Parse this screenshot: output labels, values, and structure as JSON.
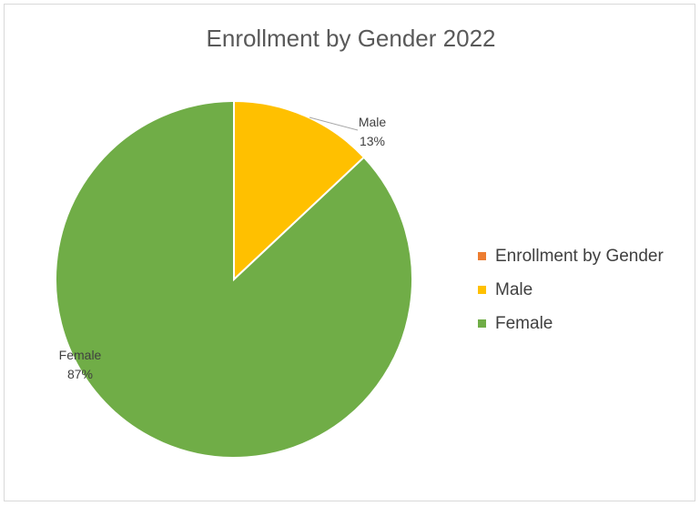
{
  "chart_data": {
    "type": "pie",
    "title": "Enrollment by Gender 2022",
    "categories": [
      "Enrollment by Gender",
      "Male",
      "Female"
    ],
    "values": [
      0,
      13,
      87
    ],
    "data_labels": [
      {
        "category": "Male",
        "percent": "13%"
      },
      {
        "category": "Female",
        "percent": "87%"
      }
    ],
    "colors": [
      "#ED7D31",
      "#FFC000",
      "#70AD47"
    ],
    "legend_position": "right"
  }
}
